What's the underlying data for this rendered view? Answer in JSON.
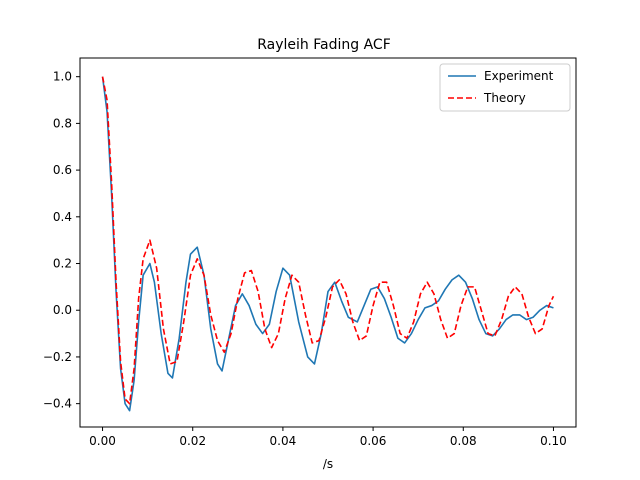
{
  "chart_data": {
    "type": "line",
    "title": "Rayleih Fading ACF",
    "xlabel": "/s",
    "ylabel": "",
    "xlim": [
      -0.005,
      0.105
    ],
    "ylim": [
      -0.5,
      1.08
    ],
    "xticks": [
      0.0,
      0.02,
      0.04,
      0.06,
      0.08,
      0.1
    ],
    "xtick_labels": [
      "0.00",
      "0.02",
      "0.04",
      "0.06",
      "0.08",
      "0.10"
    ],
    "yticks": [
      -0.4,
      -0.2,
      0.0,
      0.2,
      0.4,
      0.6,
      0.8,
      1.0
    ],
    "ytick_labels": [
      "−0.4",
      "−0.2",
      "0.0",
      "0.2",
      "0.4",
      "0.6",
      "0.8",
      "1.0"
    ],
    "grid": false,
    "legend_position": "top-right",
    "series": [
      {
        "name": "Experiment",
        "color": "#1f77b4",
        "style": "solid",
        "x": [
          0.0,
          0.001,
          0.002,
          0.003,
          0.004,
          0.005,
          0.006,
          0.007,
          0.008,
          0.009,
          0.0105,
          0.0115,
          0.013,
          0.0145,
          0.0155,
          0.017,
          0.0185,
          0.0195,
          0.021,
          0.0225,
          0.024,
          0.0255,
          0.0265,
          0.028,
          0.0295,
          0.031,
          0.0325,
          0.034,
          0.0355,
          0.037,
          0.0385,
          0.04,
          0.0415,
          0.0435,
          0.0455,
          0.047,
          0.0485,
          0.05,
          0.0515,
          0.053,
          0.0545,
          0.0565,
          0.058,
          0.0595,
          0.061,
          0.0625,
          0.064,
          0.0655,
          0.067,
          0.0685,
          0.07,
          0.0715,
          0.073,
          0.0745,
          0.076,
          0.0775,
          0.079,
          0.0805,
          0.082,
          0.0835,
          0.085,
          0.0865,
          0.088,
          0.0895,
          0.091,
          0.0925,
          0.094,
          0.0955,
          0.097,
          0.0985,
          0.1
        ],
        "y": [
          1.0,
          0.85,
          0.5,
          0.08,
          -0.25,
          -0.4,
          -0.43,
          -0.3,
          -0.05,
          0.15,
          0.2,
          0.12,
          -0.1,
          -0.27,
          -0.29,
          -0.12,
          0.12,
          0.24,
          0.27,
          0.15,
          -0.08,
          -0.23,
          -0.26,
          -0.12,
          0.02,
          0.07,
          0.02,
          -0.06,
          -0.1,
          -0.06,
          0.08,
          0.18,
          0.15,
          -0.05,
          -0.2,
          -0.23,
          -0.1,
          0.08,
          0.12,
          0.04,
          -0.03,
          -0.05,
          0.02,
          0.09,
          0.1,
          0.05,
          -0.03,
          -0.12,
          -0.14,
          -0.1,
          -0.04,
          0.01,
          0.02,
          0.04,
          0.09,
          0.13,
          0.15,
          0.12,
          0.05,
          -0.04,
          -0.1,
          -0.11,
          -0.08,
          -0.04,
          -0.02,
          -0.02,
          -0.04,
          -0.03,
          0.0,
          0.02,
          0.01
        ]
      },
      {
        "name": "Theory",
        "color": "#ff0000",
        "style": "dashed",
        "x": [
          0.0,
          0.001,
          0.002,
          0.003,
          0.004,
          0.005,
          0.006,
          0.007,
          0.008,
          0.009,
          0.0105,
          0.012,
          0.0135,
          0.015,
          0.0165,
          0.018,
          0.0195,
          0.021,
          0.0225,
          0.024,
          0.0255,
          0.027,
          0.0285,
          0.03,
          0.0315,
          0.033,
          0.0345,
          0.036,
          0.0375,
          0.039,
          0.0405,
          0.042,
          0.0435,
          0.045,
          0.0465,
          0.048,
          0.0495,
          0.051,
          0.0525,
          0.054,
          0.0555,
          0.057,
          0.0585,
          0.06,
          0.0615,
          0.063,
          0.0645,
          0.066,
          0.0675,
          0.069,
          0.0705,
          0.072,
          0.0735,
          0.075,
          0.0765,
          0.078,
          0.0795,
          0.081,
          0.0825,
          0.084,
          0.0855,
          0.087,
          0.0885,
          0.09,
          0.0915,
          0.093,
          0.0945,
          0.096,
          0.0975,
          0.099,
          0.1
        ],
        "y": [
          1.0,
          0.9,
          0.55,
          0.12,
          -0.22,
          -0.38,
          -0.4,
          -0.25,
          0.05,
          0.22,
          0.3,
          0.18,
          -0.08,
          -0.23,
          -0.22,
          -0.05,
          0.15,
          0.22,
          0.15,
          -0.02,
          -0.13,
          -0.18,
          -0.1,
          0.05,
          0.16,
          0.17,
          0.08,
          -0.08,
          -0.16,
          -0.1,
          0.05,
          0.15,
          0.12,
          -0.02,
          -0.14,
          -0.13,
          -0.03,
          0.1,
          0.13,
          0.07,
          -0.05,
          -0.13,
          -0.11,
          0.02,
          0.12,
          0.12,
          0.02,
          -0.1,
          -0.12,
          -0.05,
          0.07,
          0.12,
          0.07,
          -0.04,
          -0.12,
          -0.1,
          0.02,
          0.1,
          0.1,
          0.0,
          -0.1,
          -0.11,
          -0.04,
          0.06,
          0.1,
          0.07,
          -0.03,
          -0.1,
          -0.08,
          0.02,
          0.06
        ]
      }
    ]
  }
}
